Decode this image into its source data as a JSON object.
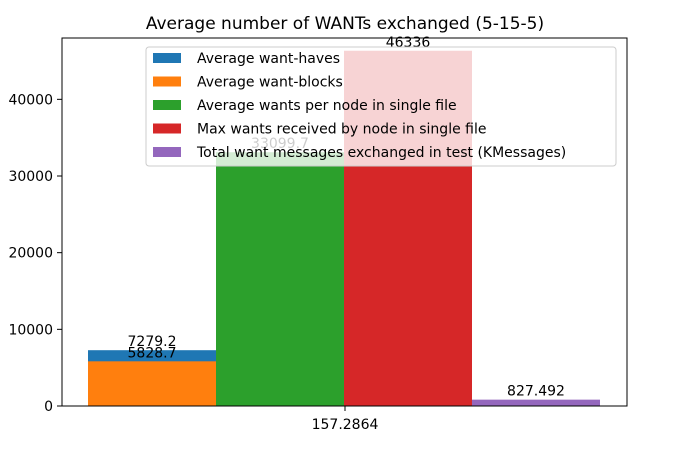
{
  "chart_data": {
    "type": "bar",
    "title": "Average number of WANTs exchanged (5-15-5)",
    "xlabel": "",
    "ylabel": "",
    "categories": [
      "157.2864"
    ],
    "ylim": [
      0,
      48000
    ],
    "yticks": [
      0,
      10000,
      20000,
      30000,
      40000
    ],
    "grid": false,
    "legend_position": "top-center",
    "series": [
      {
        "name": "Average want-haves",
        "value": 7279.2,
        "label": "7279.2",
        "color": "#1f77b4",
        "stack_base": 0
      },
      {
        "name": "Average want-blocks",
        "value": 5828.7,
        "label": "5828.7",
        "color": "#ff7f0e",
        "stack_base": 0
      },
      {
        "name": "Average wants per node in single file",
        "value": 33099.7,
        "label": "33099.7",
        "color": "#2ca02c",
        "stack_base": 0
      },
      {
        "name": "Max wants received by node in single file",
        "value": 46336,
        "label": "46336",
        "color": "#d62728",
        "stack_base": 0
      },
      {
        "name": "Total want messages exchanged in test (KMessages)",
        "value": 827.492,
        "label": "827.492",
        "color": "#9467bd",
        "stack_base": 0
      }
    ]
  }
}
